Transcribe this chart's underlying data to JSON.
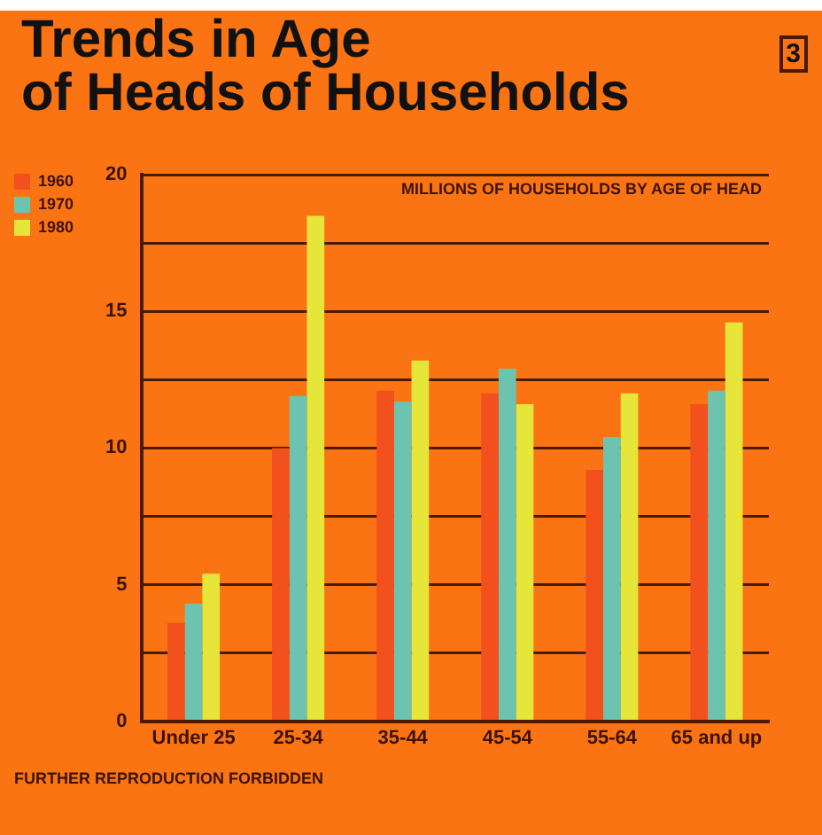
{
  "chart_data": {
    "type": "bar",
    "title": "Trends in Age\nof Heads of Households",
    "subtitle": "MILLIONS OF HOUSEHOLDS BY AGE OF HEAD",
    "annotations": [
      "3",
      "FURTHER REPRODUCTION FORBIDDEN"
    ],
    "categories": [
      "Under 25",
      "25-34",
      "35-44",
      "45-54",
      "55-64",
      "65 and up"
    ],
    "series": [
      {
        "name": "1960",
        "color": "#f2501c",
        "values": [
          3.6,
          10.0,
          12.1,
          12.0,
          9.2,
          11.6
        ]
      },
      {
        "name": "1970",
        "color": "#6cc4b0",
        "values": [
          4.3,
          11.9,
          11.7,
          12.9,
          10.4,
          12.1
        ]
      },
      {
        "name": "1980",
        "color": "#e6e63a",
        "values": [
          5.4,
          18.5,
          13.2,
          11.6,
          12.0,
          14.6
        ]
      }
    ],
    "ylim": [
      0,
      20
    ],
    "yticks": [
      0,
      {
        "value": 2.5,
        "label": null
      },
      5,
      {
        "value": 7.5,
        "label": null
      },
      10,
      {
        "value": 12.5,
        "label": null
      },
      15,
      {
        "value": 17.5,
        "label": null
      },
      20
    ],
    "grid": "y",
    "legend": "top left"
  }
}
